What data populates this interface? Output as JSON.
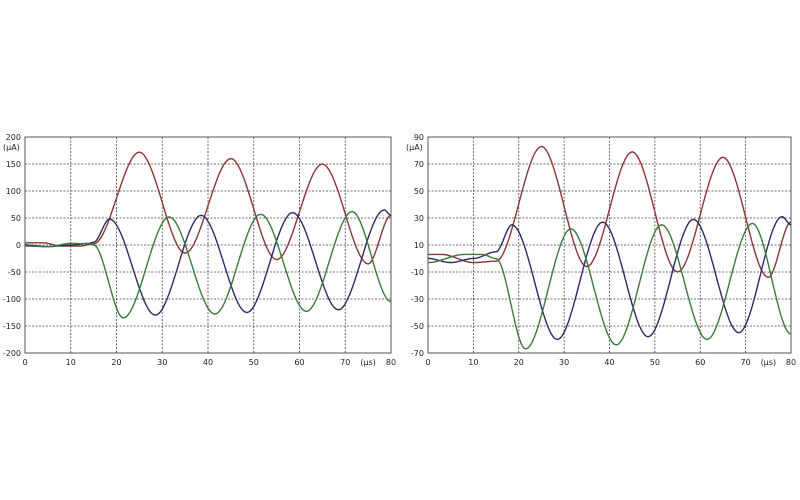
{
  "chart_data": [
    {
      "type": "line",
      "xlabel": "",
      "ylabel": "",
      "x_unit": "(μs)",
      "y_unit": "(μA)",
      "xlim": [
        0,
        80
      ],
      "ylim": [
        -200,
        200
      ],
      "xticks": [
        0,
        10,
        20,
        30,
        40,
        50,
        60,
        70,
        80
      ],
      "yticks": [
        200,
        150,
        100,
        50,
        0,
        -50,
        -100,
        -150,
        -200
      ],
      "grid": true,
      "series": [
        {
          "color": "#8b3535",
          "x": [
            0,
            4,
            8,
            12,
            15,
            25,
            35,
            45,
            55,
            65,
            75,
            80
          ],
          "y": [
            4,
            4,
            -2,
            -2,
            2,
            172,
            -15,
            160,
            -27,
            150,
            -35,
            55
          ]
        },
        {
          "color": "#2b2b66",
          "x": [
            0,
            5,
            10,
            14,
            15,
            18.5,
            28.5,
            38.5,
            48.5,
            58.5,
            68.5,
            78.5,
            80
          ],
          "y": [
            0,
            -3,
            0,
            3,
            5,
            48,
            -130,
            55,
            -125,
            60,
            -120,
            65,
            55
          ]
        },
        {
          "color": "#3a7a3a",
          "x": [
            0,
            5,
            10,
            14,
            15,
            21.5,
            31.5,
            41.5,
            51.5,
            61.5,
            71.5,
            80
          ],
          "y": [
            -2,
            -3,
            3,
            2,
            0,
            -135,
            52,
            -128,
            57,
            -123,
            62,
            -105
          ]
        }
      ]
    },
    {
      "type": "line",
      "xlabel": "",
      "ylabel": "",
      "x_unit": "(μs)",
      "y_unit": "(μA)",
      "xlim": [
        0,
        80
      ],
      "ylim": [
        -70,
        90
      ],
      "xticks": [
        0,
        10,
        20,
        30,
        40,
        50,
        60,
        70,
        80
      ],
      "yticks": [
        90,
        70,
        50,
        30,
        10,
        -10,
        -30,
        -50,
        -70
      ],
      "grid": true,
      "series": [
        {
          "color": "#8b3535",
          "x": [
            0,
            3,
            10,
            15,
            25,
            35,
            45,
            55,
            65,
            75,
            80
          ],
          "y": [
            3,
            3,
            -3,
            -2,
            83,
            -6,
            79,
            -10,
            75,
            -14,
            27
          ]
        },
        {
          "color": "#2b2b66",
          "x": [
            0,
            5,
            10,
            15,
            18.5,
            28.5,
            38.5,
            48.5,
            58.5,
            68.5,
            78,
            80
          ],
          "y": [
            0,
            -3,
            0,
            5,
            25,
            -60,
            27,
            -58,
            29,
            -55,
            31,
            25
          ]
        },
        {
          "color": "#3a7a3a",
          "x": [
            0,
            8,
            12,
            15,
            21.5,
            31.5,
            41.5,
            51.5,
            61.5,
            71.5,
            80
          ],
          "y": [
            -3,
            3,
            3,
            0,
            -67,
            22,
            -64,
            25,
            -60,
            26,
            -56
          ]
        }
      ]
    }
  ]
}
